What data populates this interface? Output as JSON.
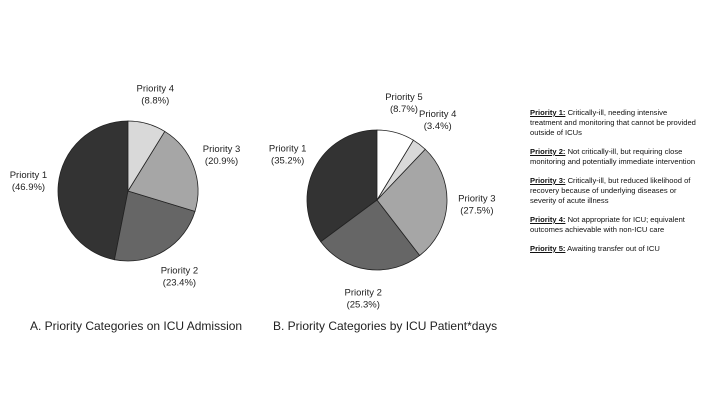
{
  "chart_data": [
    {
      "type": "pie",
      "title": "A. Priority Categories on ICU Admission",
      "categories": [
        "Priority 1",
        "Priority 2",
        "Priority 3",
        "Priority 4"
      ],
      "values": [
        46.9,
        23.4,
        20.9,
        8.8
      ],
      "value_labels": [
        "(46.9%)",
        "(23.4%)",
        "(20.9%)",
        "(8.8%)"
      ],
      "colors": [
        "#333333",
        "#666666",
        "#a6a6a6",
        "#d9d9d9"
      ]
    },
    {
      "type": "pie",
      "title": "B. Priority Categories by ICU Patient*days",
      "categories": [
        "Priority 1",
        "Priority 2",
        "Priority 3",
        "Priority 4",
        "Priority 5"
      ],
      "values": [
        35.2,
        25.3,
        27.5,
        3.4,
        8.7
      ],
      "value_labels": [
        "(35.2%)",
        "(25.3%)",
        "(27.5%)",
        "(3.4%)",
        "(8.7%)"
      ],
      "colors": [
        "#333333",
        "#666666",
        "#a6a6a6",
        "#d9d9d9",
        "#ffffff"
      ]
    }
  ],
  "notes": [
    {
      "term": "Priority 1:",
      "text": "Critically-ill, needing intensive treatment and monitoring that cannot be provided outside of ICUs"
    },
    {
      "term": "Priority 2:",
      "text": "Not critically-ill, but requiring close monitoring and potentially immediate intervention"
    },
    {
      "term": "Priority 3:",
      "text": "Critically-ill, but reduced likelihood of recovery because of underlying diseases or severity of acute illness"
    },
    {
      "term": "Priority 4:",
      "text": "Not appropriate for ICU; equivalent outcomes achievable with non-ICU care"
    },
    {
      "term": "Priority 5:",
      "text": "Awaiting transfer out of ICU"
    }
  ]
}
